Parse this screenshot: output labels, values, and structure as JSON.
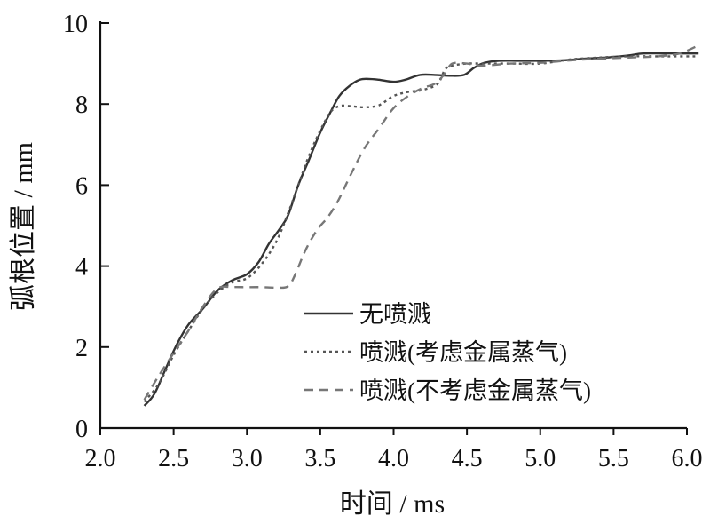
{
  "chart_data": {
    "type": "line",
    "xlabel": "时间 / ms",
    "ylabel": "弧根位置 / mm",
    "xlim": [
      2.0,
      6.0
    ],
    "ylim": [
      0,
      10
    ],
    "x_ticks": [
      "2.0",
      "2.5",
      "3.0",
      "3.5",
      "4.0",
      "4.5",
      "5.0",
      "5.5",
      "6.0"
    ],
    "y_ticks": [
      "0",
      "2",
      "4",
      "6",
      "8",
      "10"
    ],
    "grid": false,
    "legend_position": "center-right",
    "series": [
      {
        "name": "无喷溅",
        "style": "solid",
        "color": "#333333",
        "points": [
          [
            2.3,
            0.55
          ],
          [
            2.37,
            0.85
          ],
          [
            2.45,
            1.5
          ],
          [
            2.52,
            2.05
          ],
          [
            2.6,
            2.55
          ],
          [
            2.7,
            2.95
          ],
          [
            2.8,
            3.4
          ],
          [
            2.9,
            3.65
          ],
          [
            3.0,
            3.8
          ],
          [
            3.08,
            4.1
          ],
          [
            3.15,
            4.55
          ],
          [
            3.22,
            4.9
          ],
          [
            3.28,
            5.25
          ],
          [
            3.35,
            6.0
          ],
          [
            3.42,
            6.6
          ],
          [
            3.5,
            7.3
          ],
          [
            3.57,
            7.8
          ],
          [
            3.63,
            8.2
          ],
          [
            3.7,
            8.45
          ],
          [
            3.77,
            8.6
          ],
          [
            3.83,
            8.62
          ],
          [
            3.9,
            8.6
          ],
          [
            4.0,
            8.55
          ],
          [
            4.08,
            8.6
          ],
          [
            4.18,
            8.72
          ],
          [
            4.28,
            8.72
          ],
          [
            4.38,
            8.7
          ],
          [
            4.48,
            8.72
          ],
          [
            4.55,
            8.9
          ],
          [
            4.62,
            9.02
          ],
          [
            4.72,
            9.07
          ],
          [
            4.85,
            9.07
          ],
          [
            5.0,
            9.07
          ],
          [
            5.15,
            9.08
          ],
          [
            5.3,
            9.12
          ],
          [
            5.45,
            9.15
          ],
          [
            5.6,
            9.2
          ],
          [
            5.7,
            9.25
          ],
          [
            5.85,
            9.25
          ],
          [
            6.08,
            9.25
          ]
        ]
      },
      {
        "name": "喷溅(考虑金属蒸气)",
        "style": "dotted",
        "color": "#555555",
        "points": [
          [
            2.3,
            0.65
          ],
          [
            2.4,
            1.1
          ],
          [
            2.5,
            1.8
          ],
          [
            2.6,
            2.4
          ],
          [
            2.7,
            2.95
          ],
          [
            2.8,
            3.35
          ],
          [
            2.9,
            3.6
          ],
          [
            3.0,
            3.7
          ],
          [
            3.1,
            4.05
          ],
          [
            3.2,
            4.6
          ],
          [
            3.28,
            5.3
          ],
          [
            3.35,
            6.0
          ],
          [
            3.42,
            6.7
          ],
          [
            3.5,
            7.35
          ],
          [
            3.57,
            7.8
          ],
          [
            3.63,
            7.95
          ],
          [
            3.7,
            7.95
          ],
          [
            3.8,
            7.92
          ],
          [
            3.9,
            7.97
          ],
          [
            4.0,
            8.2
          ],
          [
            4.1,
            8.3
          ],
          [
            4.2,
            8.35
          ],
          [
            4.3,
            8.5
          ],
          [
            4.35,
            8.85
          ],
          [
            4.4,
            8.95
          ],
          [
            4.5,
            9.0
          ],
          [
            4.6,
            9.0
          ],
          [
            4.8,
            9.0
          ],
          [
            5.0,
            9.0
          ],
          [
            5.2,
            9.1
          ],
          [
            5.4,
            9.15
          ],
          [
            5.6,
            9.18
          ],
          [
            5.8,
            9.18
          ],
          [
            6.08,
            9.18
          ]
        ]
      },
      {
        "name": "喷溅(不考虑金属蒸气)",
        "style": "dashed",
        "color": "#777777",
        "points": [
          [
            2.3,
            0.7
          ],
          [
            2.4,
            1.3
          ],
          [
            2.5,
            1.85
          ],
          [
            2.6,
            2.4
          ],
          [
            2.7,
            3.0
          ],
          [
            2.8,
            3.45
          ],
          [
            2.9,
            3.48
          ],
          [
            3.0,
            3.48
          ],
          [
            3.1,
            3.48
          ],
          [
            3.2,
            3.47
          ],
          [
            3.28,
            3.5
          ],
          [
            3.33,
            3.8
          ],
          [
            3.4,
            4.4
          ],
          [
            3.48,
            4.9
          ],
          [
            3.55,
            5.2
          ],
          [
            3.62,
            5.6
          ],
          [
            3.7,
            6.2
          ],
          [
            3.8,
            6.9
          ],
          [
            3.9,
            7.4
          ],
          [
            4.0,
            7.9
          ],
          [
            4.1,
            8.2
          ],
          [
            4.2,
            8.4
          ],
          [
            4.28,
            8.5
          ],
          [
            4.35,
            8.75
          ],
          [
            4.4,
            9.0
          ],
          [
            4.5,
            9.0
          ],
          [
            4.6,
            8.95
          ],
          [
            4.8,
            9.0
          ],
          [
            5.0,
            9.02
          ],
          [
            5.2,
            9.08
          ],
          [
            5.4,
            9.12
          ],
          [
            5.6,
            9.15
          ],
          [
            5.8,
            9.18
          ],
          [
            5.95,
            9.25
          ],
          [
            6.08,
            9.45
          ]
        ]
      }
    ]
  }
}
